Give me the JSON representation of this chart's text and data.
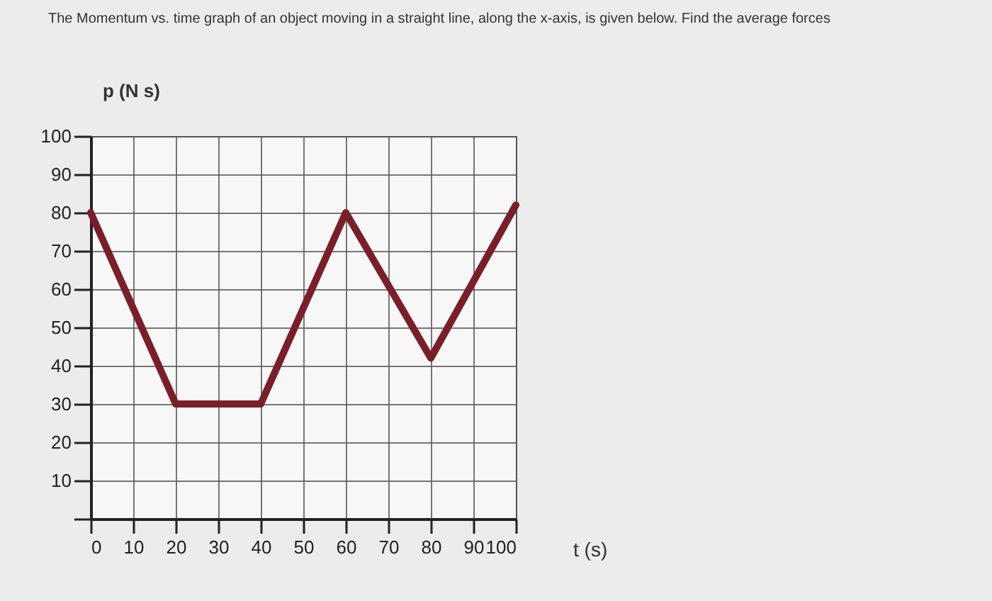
{
  "chart_data": {
    "type": "line",
    "title": "The Momentum vs. time graph of an object moving in a straight line, along the x-axis, is given below. Find the average forces",
    "xlabel": "t (s)",
    "ylabel": "p (N s)",
    "x": [
      0,
      20,
      40,
      60,
      80,
      100
    ],
    "series": [
      {
        "color": "#7a1f2a",
        "values": [
          80,
          30,
          30,
          80,
          42,
          82
        ]
      }
    ],
    "xlim": [
      0,
      100
    ],
    "ylim": [
      0,
      100
    ],
    "xticks": [
      0,
      10,
      20,
      30,
      40,
      50,
      60,
      70,
      80,
      90,
      100
    ],
    "yticks": [
      {
        "value": 0,
        "label": null
      },
      10,
      20,
      30,
      40,
      50,
      60,
      70,
      80,
      90,
      100
    ],
    "grid": true,
    "marker": "none",
    "line_style": "solid"
  }
}
